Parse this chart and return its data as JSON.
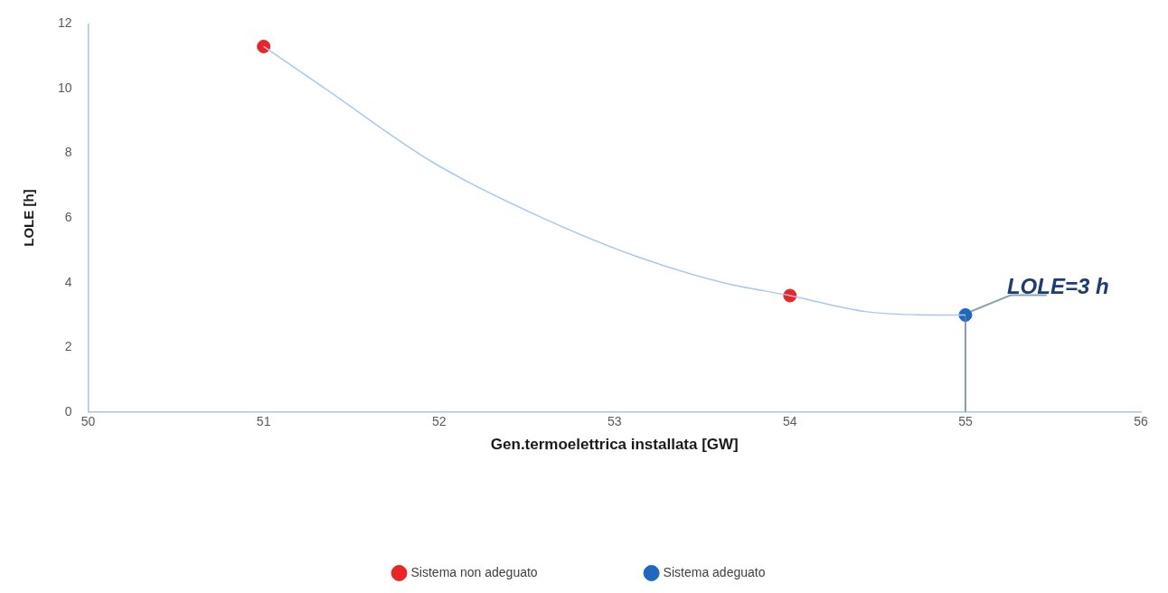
{
  "chart_data": {
    "type": "scatter",
    "xlabel": "Gen.termoelettrica installata [GW]",
    "ylabel": "LOLE [h]",
    "xlim": [
      50,
      56
    ],
    "xticks": [
      50,
      51,
      52,
      53,
      54,
      55,
      56
    ],
    "ylim": [
      0,
      12
    ],
    "yticks": [
      0,
      2,
      4,
      6,
      8,
      10,
      12
    ],
    "grid": false,
    "legend": "bottom",
    "marker": "circle",
    "series": [
      {
        "type": "line",
        "marker": "none",
        "color": "#a9c9ec",
        "x": [
          51,
          51.35,
          51.97,
          52.59,
          53.13,
          53.62,
          54,
          54.44,
          54.86,
          55
        ],
        "values": [
          11.3,
          10.0,
          7.7,
          6.0,
          4.8,
          4.0,
          3.6,
          3.1,
          3.0,
          3.0
        ]
      },
      {
        "type": "line",
        "marker": "none",
        "color": "#5f7f8c",
        "x": [
          55,
          55
        ],
        "values": [
          0,
          3
        ]
      },
      {
        "type": "scatter",
        "name": "Sistema non adeguato",
        "color": "#e8262a",
        "x": [
          51,
          54
        ],
        "values": [
          11.3,
          3.6
        ]
      },
      {
        "type": "scatter",
        "name": "Sistema adeguato",
        "color": "#1f68c0",
        "x": [
          55
        ],
        "values": [
          3
        ]
      }
    ],
    "annotations": [
      {
        "text": "LOLE=3 h",
        "x": 55,
        "y": 3
      }
    ]
  }
}
